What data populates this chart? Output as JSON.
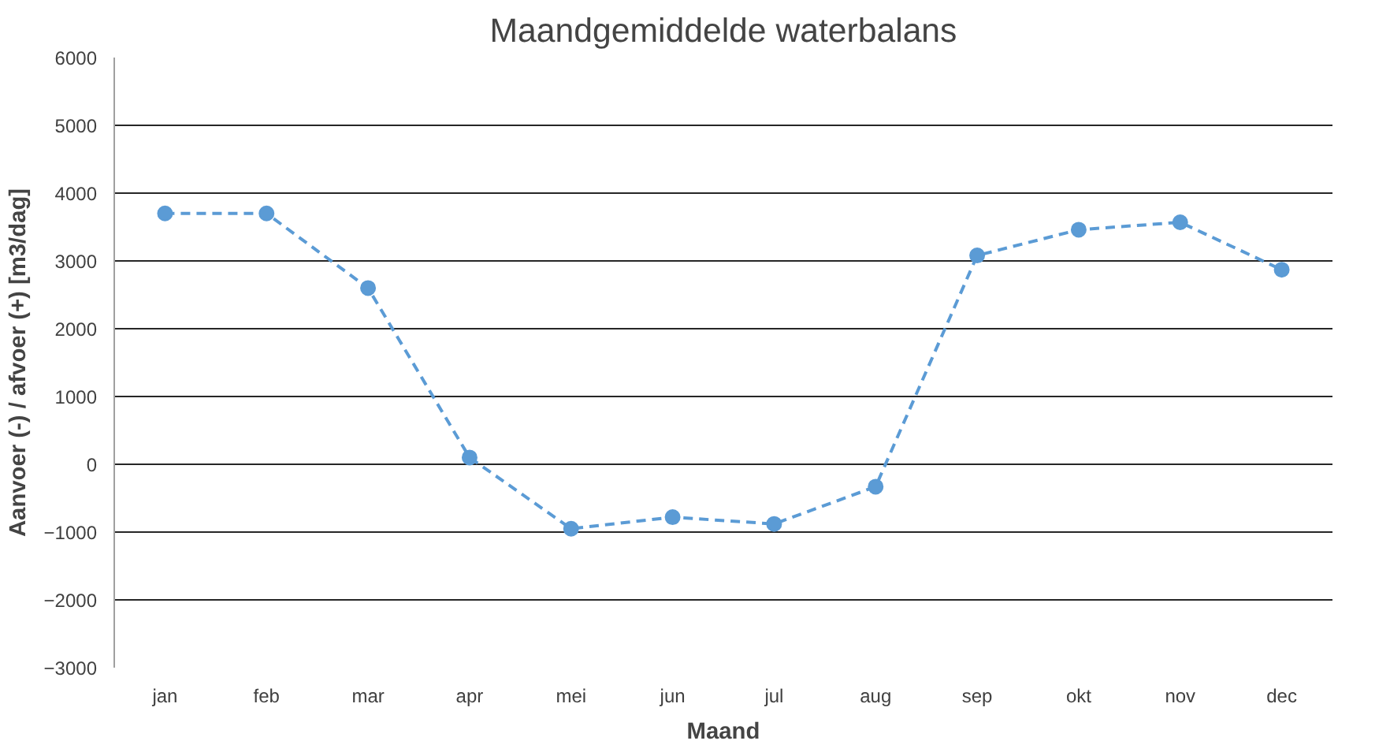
{
  "chart_data": {
    "type": "line",
    "title": "Maandgemiddelde waterbalans",
    "xlabel": "Maand",
    "ylabel": "Aanvoer (-) / afvoer (+) [m3/dag]",
    "categories": [
      "jan",
      "feb",
      "mar",
      "apr",
      "mei",
      "jun",
      "jul",
      "aug",
      "sep",
      "okt",
      "nov",
      "dec"
    ],
    "series": [
      {
        "color": "#5b9bd5",
        "values": [
          3700,
          3700,
          2600,
          100,
          -950,
          -780,
          -880,
          -330,
          3080,
          3460,
          3570,
          2870
        ]
      }
    ],
    "ylim": [
      -3000,
      6000
    ],
    "yticks": [
      -3000,
      -2000,
      -1000,
      0,
      1000,
      2000,
      3000,
      4000,
      5000,
      6000
    ],
    "grid": "y",
    "marker": "circle",
    "line_style": "dashed"
  }
}
